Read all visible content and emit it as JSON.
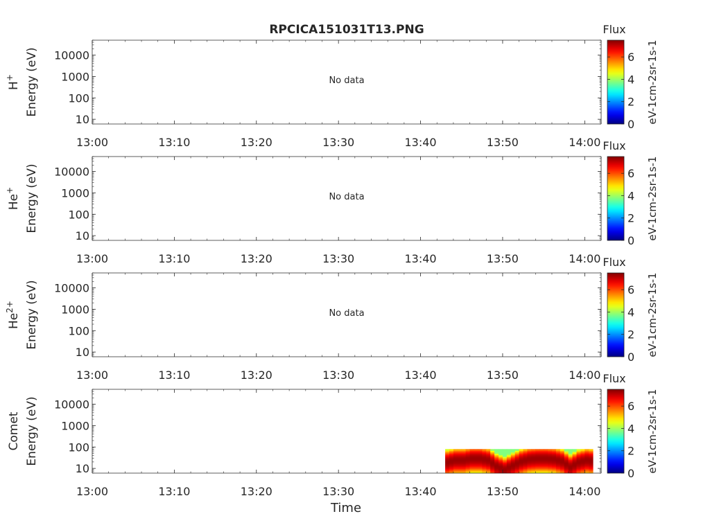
{
  "chart_data": {
    "type": "heatmap",
    "title": "RPCICA151031T13.PNG",
    "xlabel": "Time",
    "x_ticks": [
      "13:00",
      "13:10",
      "13:20",
      "13:30",
      "13:40",
      "13:50",
      "14:00"
    ],
    "xlim_minutes": [
      0,
      62
    ],
    "y_scale": "log",
    "ylim": [
      6,
      50000
    ],
    "y_ticks": [
      10,
      100,
      1000,
      10000
    ],
    "y_tick_labels": [
      "10",
      "100",
      "1000",
      "10000"
    ],
    "colorbar": {
      "title": "Flux",
      "unit_label": "eV-1cm-2sr-1s-1",
      "range": [
        0,
        7.5
      ],
      "ticks": [
        0,
        2,
        4,
        6
      ],
      "tick_labels": [
        "0",
        "2",
        "4",
        "6"
      ],
      "colormap": "jet"
    },
    "panels": [
      {
        "species_base": "H",
        "species_sup": "+",
        "ylabel": "Energy (eV)",
        "message": "No data",
        "has_data": false
      },
      {
        "species_base": "He",
        "species_sup": "+",
        "ylabel": "Energy (eV)",
        "message": "No data",
        "has_data": false
      },
      {
        "species_base": "He",
        "species_sup": "2+",
        "ylabel": "Energy (eV)",
        "message": "No data",
        "has_data": false
      },
      {
        "species_base": "Comet",
        "species_sup": "",
        "ylabel": "Energy (eV)",
        "message": "",
        "has_data": true,
        "spectrogram": {
          "time_range_minutes": [
            43,
            61
          ],
          "energy_range_eV": [
            6,
            80
          ],
          "peak_energy_eV": [
            [
              43,
              20
            ],
            [
              44,
              25
            ],
            [
              45,
              25
            ],
            [
              46,
              30
            ],
            [
              47,
              30
            ],
            [
              48,
              25
            ],
            [
              49,
              13
            ],
            [
              50,
              9
            ],
            [
              51,
              14
            ],
            [
              52,
              22
            ],
            [
              53,
              28
            ],
            [
              54,
              30
            ],
            [
              55,
              30
            ],
            [
              56,
              28
            ],
            [
              57,
              22
            ],
            [
              58,
              12
            ],
            [
              59,
              20
            ],
            [
              60,
              25
            ],
            [
              61,
              22
            ]
          ],
          "max_flux": 7.3
        }
      }
    ]
  }
}
